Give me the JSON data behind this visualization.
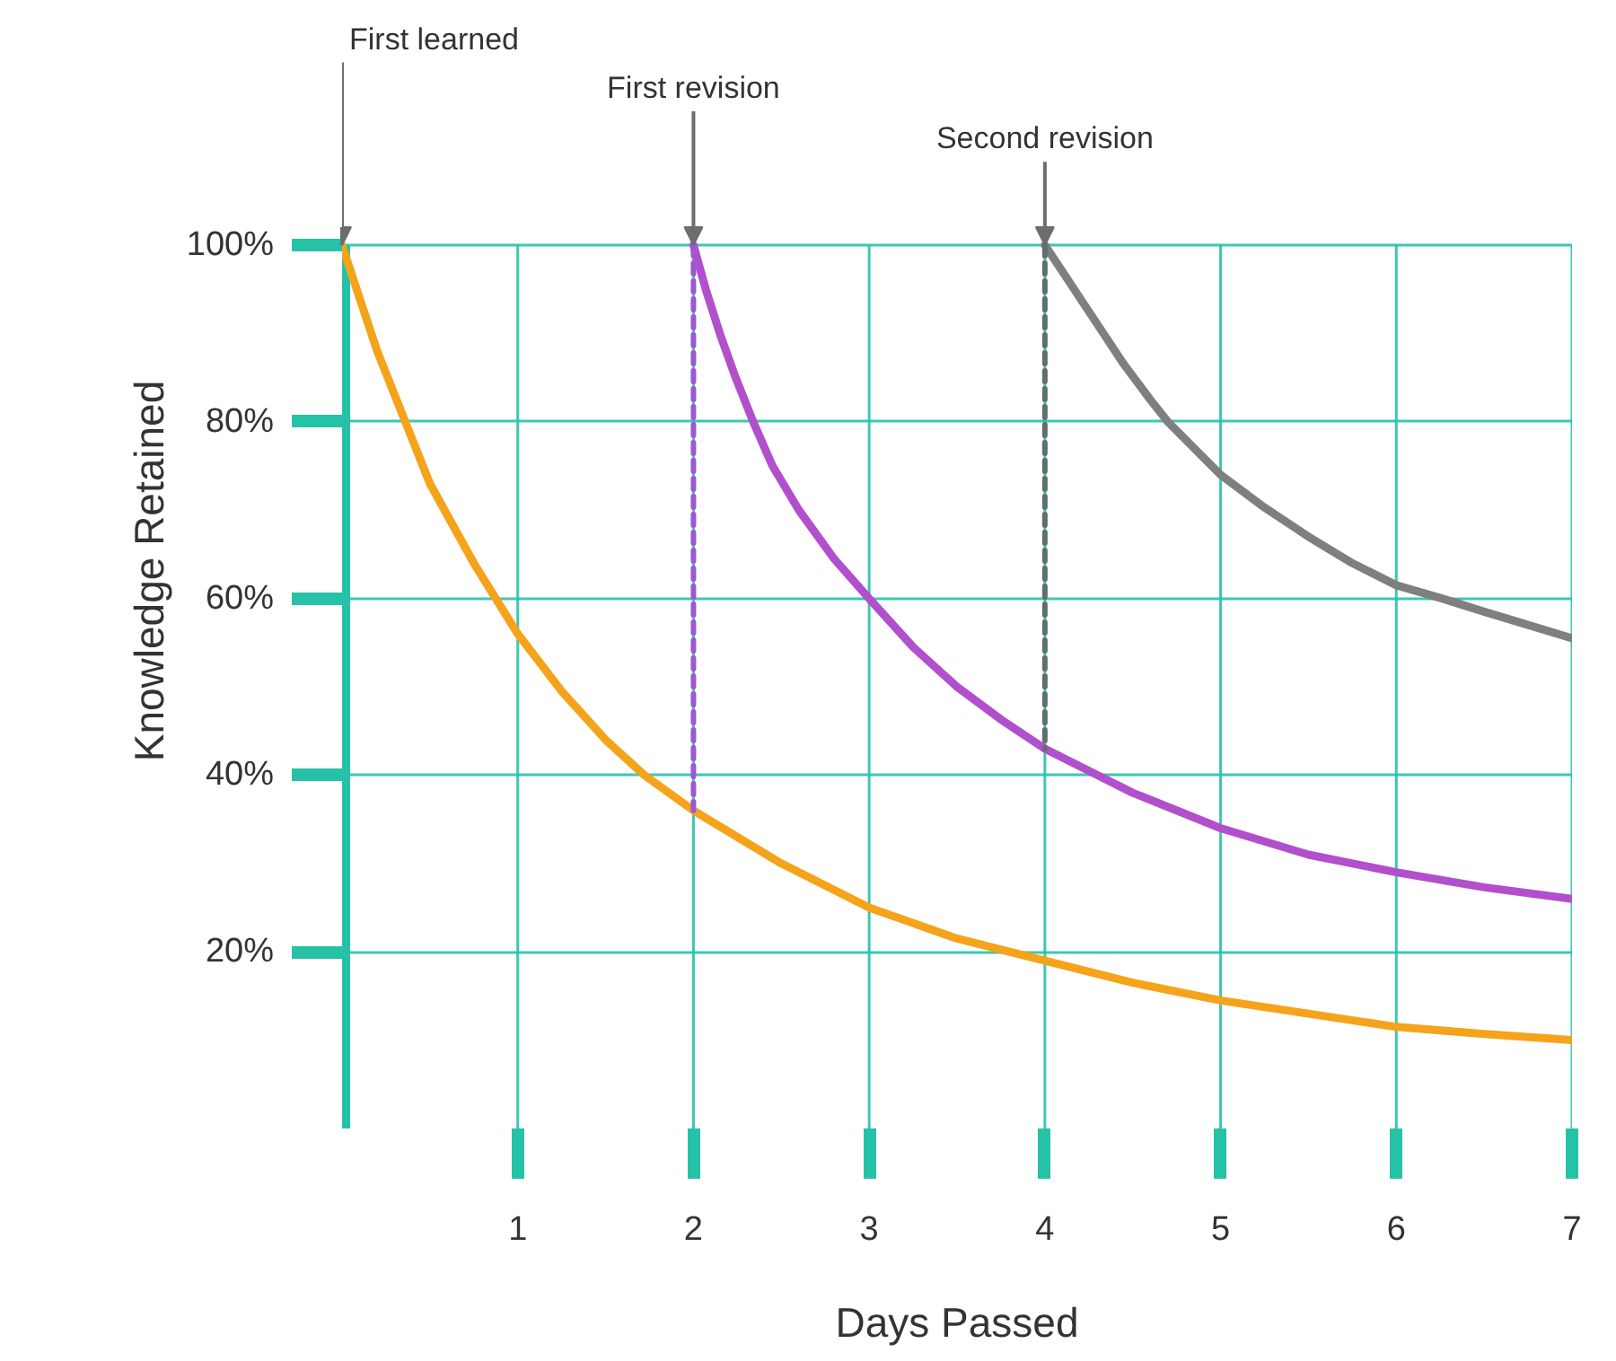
{
  "chart_data": {
    "type": "line",
    "xlabel": "Days Passed",
    "ylabel": "Knowledge Retained",
    "xlim": [
      0,
      7
    ],
    "ylim": [
      0,
      100
    ],
    "xticks": [
      1,
      2,
      3,
      4,
      5,
      6,
      7
    ],
    "yticks": [
      {
        "value": 20,
        "label": "20%"
      },
      {
        "value": 40,
        "label": "40%"
      },
      {
        "value": 60,
        "label": "60%"
      },
      {
        "value": 80,
        "label": "80%"
      },
      {
        "value": 100,
        "label": "100%"
      }
    ],
    "grid": true,
    "line_style": "solid",
    "series": [
      {
        "color": "#f5a31a",
        "x": [
          0,
          0.1,
          0.2,
          0.36,
          0.5,
          0.75,
          1,
          1.25,
          1.5,
          1.72,
          2,
          2.5,
          3,
          3.5,
          4,
          4.5,
          5,
          5.5,
          6,
          6.5,
          7
        ],
        "values": [
          100,
          94,
          88,
          80,
          73,
          64,
          56,
          49.5,
          44,
          40,
          36,
          30,
          25,
          21.5,
          19,
          16.5,
          14.5,
          13,
          11.5,
          10.7,
          10
        ]
      },
      {
        "color": "#b24fcc",
        "x": [
          2,
          2.07,
          2.15,
          2.24,
          2.34,
          2.45,
          2.6,
          2.8,
          3,
          3.25,
          3.5,
          3.75,
          4,
          4.3,
          4.5,
          5,
          5.5,
          6,
          6.5,
          7
        ],
        "values": [
          100,
          95,
          90,
          85,
          80,
          75,
          70,
          64.5,
          60,
          54.5,
          50,
          46.3,
          43,
          40,
          38,
          34,
          31,
          29,
          27.3,
          26
        ]
      },
      {
        "color": "#7f7f7f",
        "x": [
          4,
          4.1,
          4.2,
          4.3,
          4.45,
          4.6,
          4.7,
          4.85,
          5,
          5.25,
          5.5,
          5.75,
          6,
          6.26,
          6.5,
          6.75,
          7
        ],
        "values": [
          100,
          97,
          94,
          91,
          86.5,
          82.5,
          80,
          77,
          74,
          70.3,
          67,
          64,
          61.5,
          60,
          58.5,
          57,
          55.5
        ]
      },
      {
        "color": "#9b59d0",
        "line_style": "dashed",
        "x": [
          2,
          2
        ],
        "values": [
          100,
          36
        ]
      },
      {
        "color": "#5f6f6f",
        "line_style": "dashed",
        "x": [
          4,
          4
        ],
        "values": [
          100,
          43
        ]
      }
    ],
    "annotations": [
      {
        "text": "First learned",
        "x": 0,
        "y": 100
      },
      {
        "text": "First revision",
        "x": 2,
        "y": 100
      },
      {
        "text": "Second revision",
        "x": 4,
        "y": 100
      }
    ]
  }
}
